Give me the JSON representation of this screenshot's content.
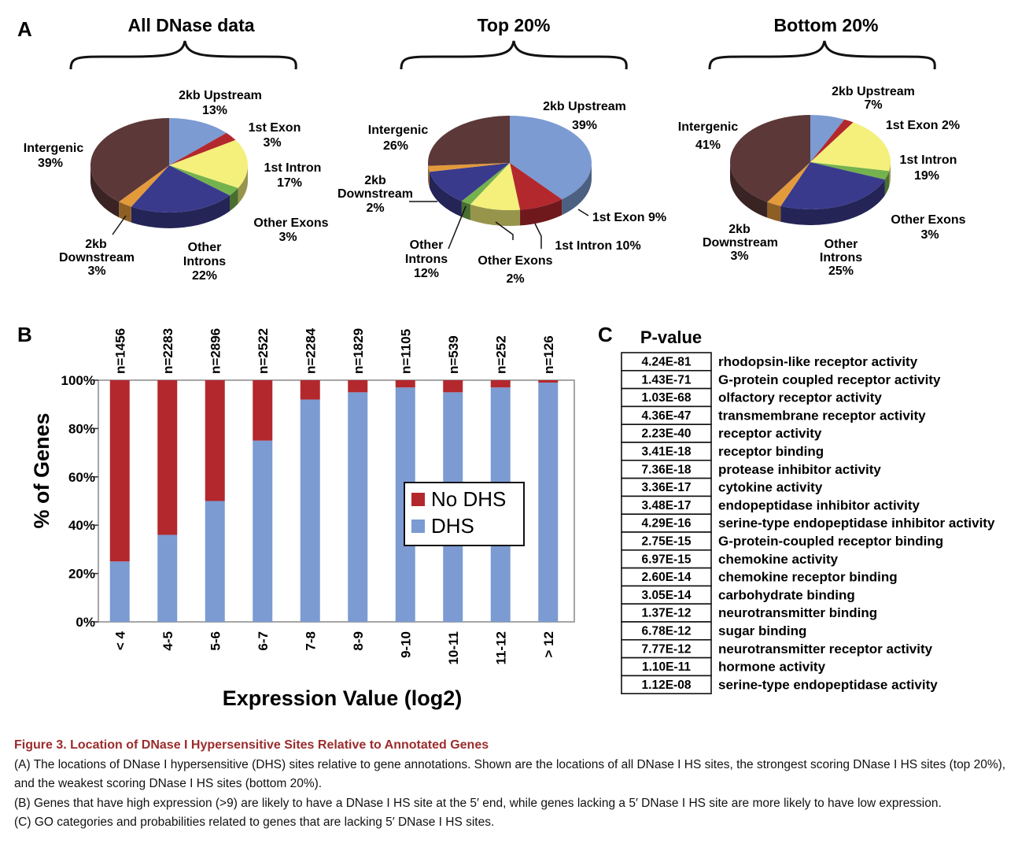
{
  "panel_labels": {
    "a": "A",
    "b": "B",
    "c": "C"
  },
  "colors": {
    "upstream": "#7b9bd2",
    "exon1": "#b3282d",
    "intron1": "#f4f07b",
    "other_exons": "#74b24e",
    "other_introns": "#3a3a8c",
    "downstream": "#e39a3b",
    "intergenic": "#5c3838",
    "no_dhs": "#b3282d",
    "dhs": "#7b9bd2"
  },
  "chart_data": [
    {
      "type": "pie",
      "title": "All DNase data",
      "slices": [
        {
          "label": "2kb Upstream",
          "value": 13,
          "value_label": "13%"
        },
        {
          "label": "1st Exon",
          "value": 3,
          "value_label": "3%"
        },
        {
          "label": "1st Intron",
          "value": 17,
          "value_label": "17%"
        },
        {
          "label": "Other Exons",
          "value": 3,
          "value_label": "3%"
        },
        {
          "label": "Other Introns",
          "value": 22,
          "value_label": "22%"
        },
        {
          "label": "2kb Downstream",
          "value": 3,
          "value_label": "3%"
        },
        {
          "label": "Intergenic",
          "value": 39,
          "value_label": "39%"
        }
      ]
    },
    {
      "type": "pie",
      "title": "Top 20%",
      "slices": [
        {
          "label": "2kb Upstream",
          "value": 39,
          "value_label": "39%"
        },
        {
          "label": "1st Exon",
          "value": 9,
          "value_label": "9%"
        },
        {
          "label": "1st Intron",
          "value": 10,
          "value_label": "10%"
        },
        {
          "label": "Other Exons",
          "value": 2,
          "value_label": "2%"
        },
        {
          "label": "Other Introns",
          "value": 12,
          "value_label": "12%"
        },
        {
          "label": "2kb Downstream",
          "value": 2,
          "value_label": "2%"
        },
        {
          "label": "Intergenic",
          "value": 26,
          "value_label": "26%"
        }
      ]
    },
    {
      "type": "pie",
      "title": "Bottom 20%",
      "slices": [
        {
          "label": "2kb Upstream",
          "value": 7,
          "value_label": "7%"
        },
        {
          "label": "1st Exon",
          "value": 2,
          "value_label": "2%"
        },
        {
          "label": "1st Intron",
          "value": 19,
          "value_label": "19%"
        },
        {
          "label": "Other Exons",
          "value": 3,
          "value_label": "3%"
        },
        {
          "label": "Other Introns",
          "value": 25,
          "value_label": "25%"
        },
        {
          "label": "2kb Downstream",
          "value": 3,
          "value_label": "3%"
        },
        {
          "label": "Intergenic",
          "value": 41,
          "value_label": "41%"
        }
      ]
    },
    {
      "type": "bar",
      "stacked": true,
      "xlabel": "Expression Value (log2)",
      "ylabel": "% of Genes",
      "ylim": [
        0,
        100
      ],
      "yticks": [
        "0%",
        "20%",
        "40%",
        "60%",
        "80%",
        "100%"
      ],
      "categories": [
        "< 4",
        "4-5",
        "5-6",
        "6-7",
        "7-8",
        "8-9",
        "9-10",
        "10-11",
        "11-12",
        "> 12"
      ],
      "n_labels": [
        "n=1456",
        "n=2283",
        "n=2896",
        "n=2522",
        "n=2284",
        "n=1829",
        "n=1105",
        "n=539",
        "n=252",
        "n=126"
      ],
      "series": [
        {
          "name": "DHS",
          "values": [
            25,
            36,
            50,
            75,
            92,
            95,
            97,
            95,
            97,
            99
          ]
        },
        {
          "name": "No DHS",
          "values": [
            75,
            64,
            50,
            25,
            8,
            5,
            3,
            5,
            3,
            1
          ]
        }
      ],
      "legend": [
        "No DHS",
        "DHS"
      ],
      "legend_position": "center-right"
    },
    {
      "type": "table",
      "header": "P-value",
      "rows": [
        [
          "4.24E-81",
          "rhodopsin-like receptor activity"
        ],
        [
          "1.43E-71",
          "G-protein coupled receptor activity"
        ],
        [
          "1.03E-68",
          "olfactory receptor activity"
        ],
        [
          "4.36E-47",
          "transmembrane receptor activity"
        ],
        [
          "2.23E-40",
          "receptor activity"
        ],
        [
          "3.41E-18",
          "receptor binding"
        ],
        [
          "7.36E-18",
          "protease inhibitor activity"
        ],
        [
          "3.36E-17",
          "cytokine activity"
        ],
        [
          "3.48E-17",
          "endopeptidase inhibitor activity"
        ],
        [
          "4.29E-16",
          "serine-type endopeptidase inhibitor activity"
        ],
        [
          "2.75E-15",
          "G-protein-coupled receptor binding"
        ],
        [
          "6.97E-15",
          "chemokine activity"
        ],
        [
          "2.60E-14",
          "chemokine receptor binding"
        ],
        [
          "3.05E-14",
          "carbohydrate binding"
        ],
        [
          "1.37E-12",
          "neurotransmitter binding"
        ],
        [
          "6.78E-12",
          "sugar binding"
        ],
        [
          "7.77E-12",
          "neurotransmitter receptor activity"
        ],
        [
          "1.10E-11",
          "hormone activity"
        ],
        [
          "1.12E-08",
          "serine-type endopeptidase activity"
        ]
      ]
    }
  ],
  "pie_label_text": {
    "all": {
      "upstream": [
        "2kb Upstream",
        "13%"
      ],
      "exon1": [
        "1st Exon",
        "3%"
      ],
      "intron1": [
        "1st Intron",
        "17%"
      ],
      "other_exons": [
        "Other Exons",
        "3%"
      ],
      "other_introns": [
        "Other",
        "Introns",
        "22%"
      ],
      "downstream": [
        "2kb",
        "Downstream",
        "3%"
      ],
      "intergenic": [
        "Intergenic",
        "39%"
      ]
    },
    "top": {
      "upstream": [
        "2kb Upstream",
        "39%"
      ],
      "exon1": [
        "1st Exon 9%"
      ],
      "intron1": [
        "1st Intron 10%"
      ],
      "other_exons": [
        "Other Exons",
        "2%"
      ],
      "other_introns": [
        "Other",
        "Introns",
        "12%"
      ],
      "downstream": [
        "2kb",
        "Downstream",
        "2%"
      ],
      "intergenic": [
        "Intergenic",
        "26%"
      ]
    },
    "bottom": {
      "upstream": [
        "2kb Upstream",
        "7%"
      ],
      "exon1": [
        "1st Exon 2%"
      ],
      "intron1": [
        "1st Intron",
        "19%"
      ],
      "other_exons": [
        "Other Exons",
        "3%"
      ],
      "other_introns": [
        "Other",
        "Introns",
        "25%"
      ],
      "downstream": [
        "2kb",
        "Downstream",
        "3%"
      ],
      "intergenic": [
        "Intergenic",
        "41%"
      ]
    }
  },
  "caption": {
    "title": "Figure 3.  Location of DNase I Hypersensitive Sites Relative to Annotated Genes",
    "a": "(A) The locations of DNase I hypersensitive (DHS) sites relative to gene annotations. Shown are the locations of all DNase I HS sites, the strongest scoring DNase I HS sites (top 20%), and the weakest scoring DNase I HS sites (bottom 20%).",
    "b": "(B) Genes that have high expression (>9) are likely to have a DNase I HS site at the 5′ end, while genes lacking a 5′ DNase I HS site are more likely to have low expression.",
    "c": "(C) GO categories and probabilities related to genes that are lacking 5′ DNase I HS sites."
  }
}
